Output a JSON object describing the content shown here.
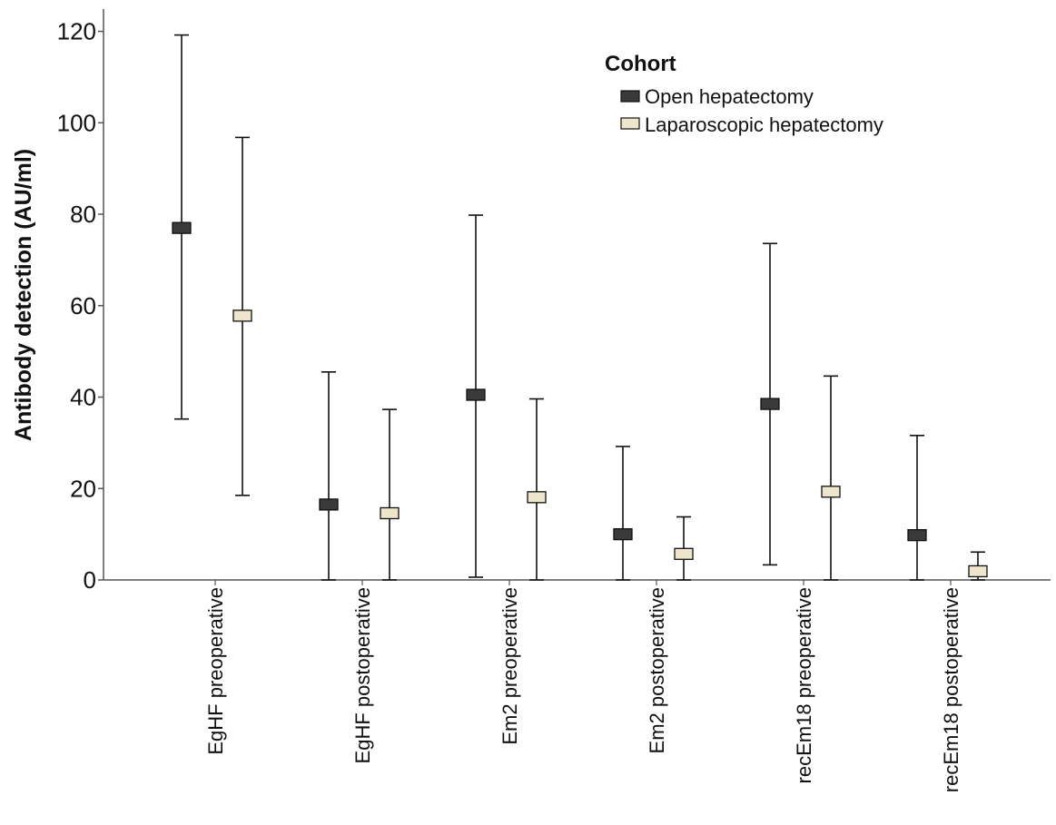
{
  "chart_data": {
    "type": "errorbar",
    "ylabel": "Antibody detection (AU/ml)",
    "xlabel": "",
    "ylim": [
      0,
      125
    ],
    "yticks": [
      0,
      20,
      40,
      60,
      80,
      100,
      120
    ],
    "grid": false,
    "legend": {
      "title": "Cohort",
      "position": "top-right"
    },
    "categories": [
      "EgHF preoperative",
      "EgHF postoperative",
      "Em2 preoperative",
      "Em2 postoperative",
      "recEm18 preoperative",
      "recEm18 postoperative"
    ],
    "series": [
      {
        "name": "Open hepatectomy",
        "color": "#3a3a3a",
        "means": [
          77,
          16.5,
          40.5,
          10,
          38.5,
          9.8
        ],
        "lower": [
          35.2,
          0,
          0.6,
          0,
          3.3,
          0
        ],
        "upper": [
          119.2,
          45.5,
          79.8,
          29.2,
          73.6,
          31.6
        ]
      },
      {
        "name": "Laparoscopic hepatectomy",
        "color": "#ede6cc",
        "means": [
          57.8,
          14.6,
          18.1,
          5.7,
          19.3,
          1.9
        ],
        "lower": [
          18.5,
          0,
          0,
          0,
          0,
          0
        ],
        "upper": [
          96.8,
          37.3,
          39.6,
          13.8,
          44.6,
          6.1
        ]
      }
    ]
  }
}
